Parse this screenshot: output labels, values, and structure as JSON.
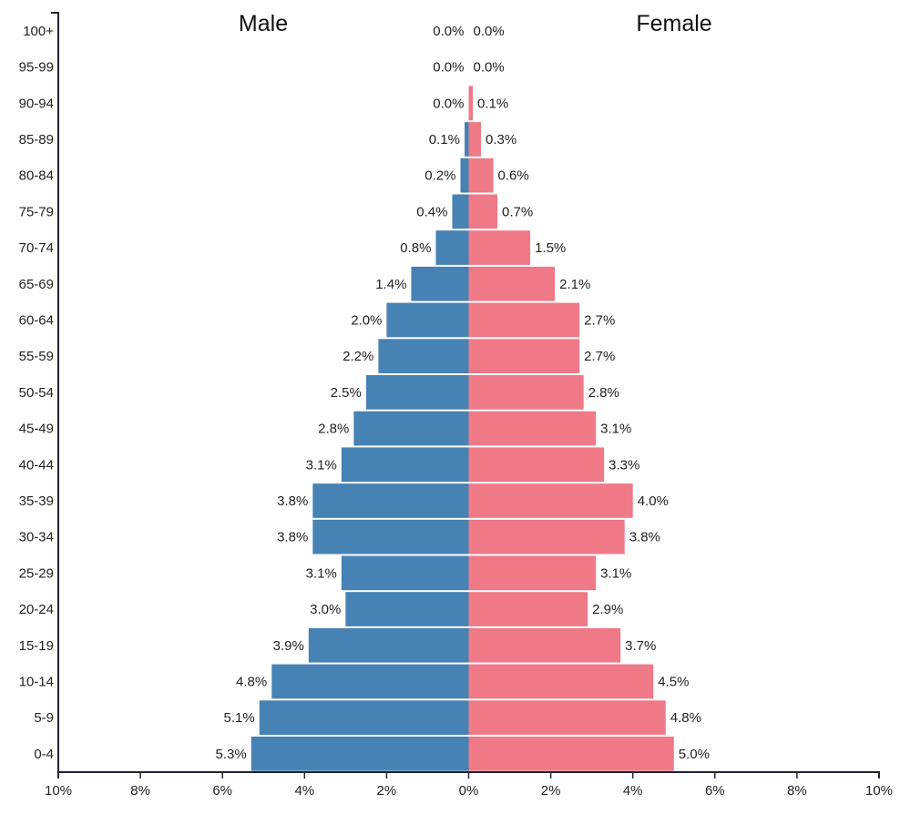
{
  "chart_data": {
    "type": "bar",
    "subtype": "population-pyramid",
    "categories": [
      "100+",
      "95-99",
      "90-94",
      "85-89",
      "80-84",
      "75-79",
      "70-74",
      "65-69",
      "60-64",
      "55-59",
      "50-54",
      "45-49",
      "40-44",
      "35-39",
      "30-34",
      "25-29",
      "20-24",
      "15-19",
      "10-14",
      "5-9",
      "0-4"
    ],
    "series": [
      {
        "name": "Male",
        "color": "#4682b4",
        "values": [
          0.0,
          0.0,
          0.0,
          0.1,
          0.2,
          0.4,
          0.8,
          1.4,
          2.0,
          2.2,
          2.5,
          2.8,
          3.1,
          3.8,
          3.8,
          3.1,
          3.0,
          3.9,
          4.8,
          5.1,
          5.3
        ],
        "labels": [
          "0.0%",
          "0.0%",
          "0.0%",
          "0.1%",
          "0.2%",
          "0.4%",
          "0.8%",
          "1.4%",
          "2.0%",
          "2.2%",
          "2.5%",
          "2.8%",
          "3.1%",
          "3.8%",
          "3.8%",
          "3.1%",
          "3.0%",
          "3.9%",
          "4.8%",
          "5.1%",
          "5.3%"
        ]
      },
      {
        "name": "Female",
        "color": "#ef7987",
        "values": [
          0.0,
          0.0,
          0.1,
          0.3,
          0.6,
          0.7,
          1.5,
          2.1,
          2.7,
          2.7,
          2.8,
          3.1,
          3.3,
          4.0,
          3.8,
          3.1,
          2.9,
          3.7,
          4.5,
          4.8,
          5.0
        ],
        "labels": [
          "0.0%",
          "0.0%",
          "0.1%",
          "0.3%",
          "0.6%",
          "0.7%",
          "1.5%",
          "2.1%",
          "2.7%",
          "2.7%",
          "2.8%",
          "3.1%",
          "3.3%",
          "4.0%",
          "3.8%",
          "3.1%",
          "2.9%",
          "3.7%",
          "4.5%",
          "4.8%",
          "5.0%"
        ]
      }
    ],
    "titles": {
      "left": "Male",
      "right": "Female"
    },
    "xlim": [
      -10,
      10
    ],
    "xticks": [
      -10,
      -8,
      -6,
      -4,
      -2,
      0,
      2,
      4,
      6,
      8,
      10
    ],
    "xtick_labels": [
      "10%",
      "8%",
      "6%",
      "4%",
      "2%",
      "0%",
      "2%",
      "4%",
      "6%",
      "8%",
      "10%"
    ],
    "grid": false
  }
}
